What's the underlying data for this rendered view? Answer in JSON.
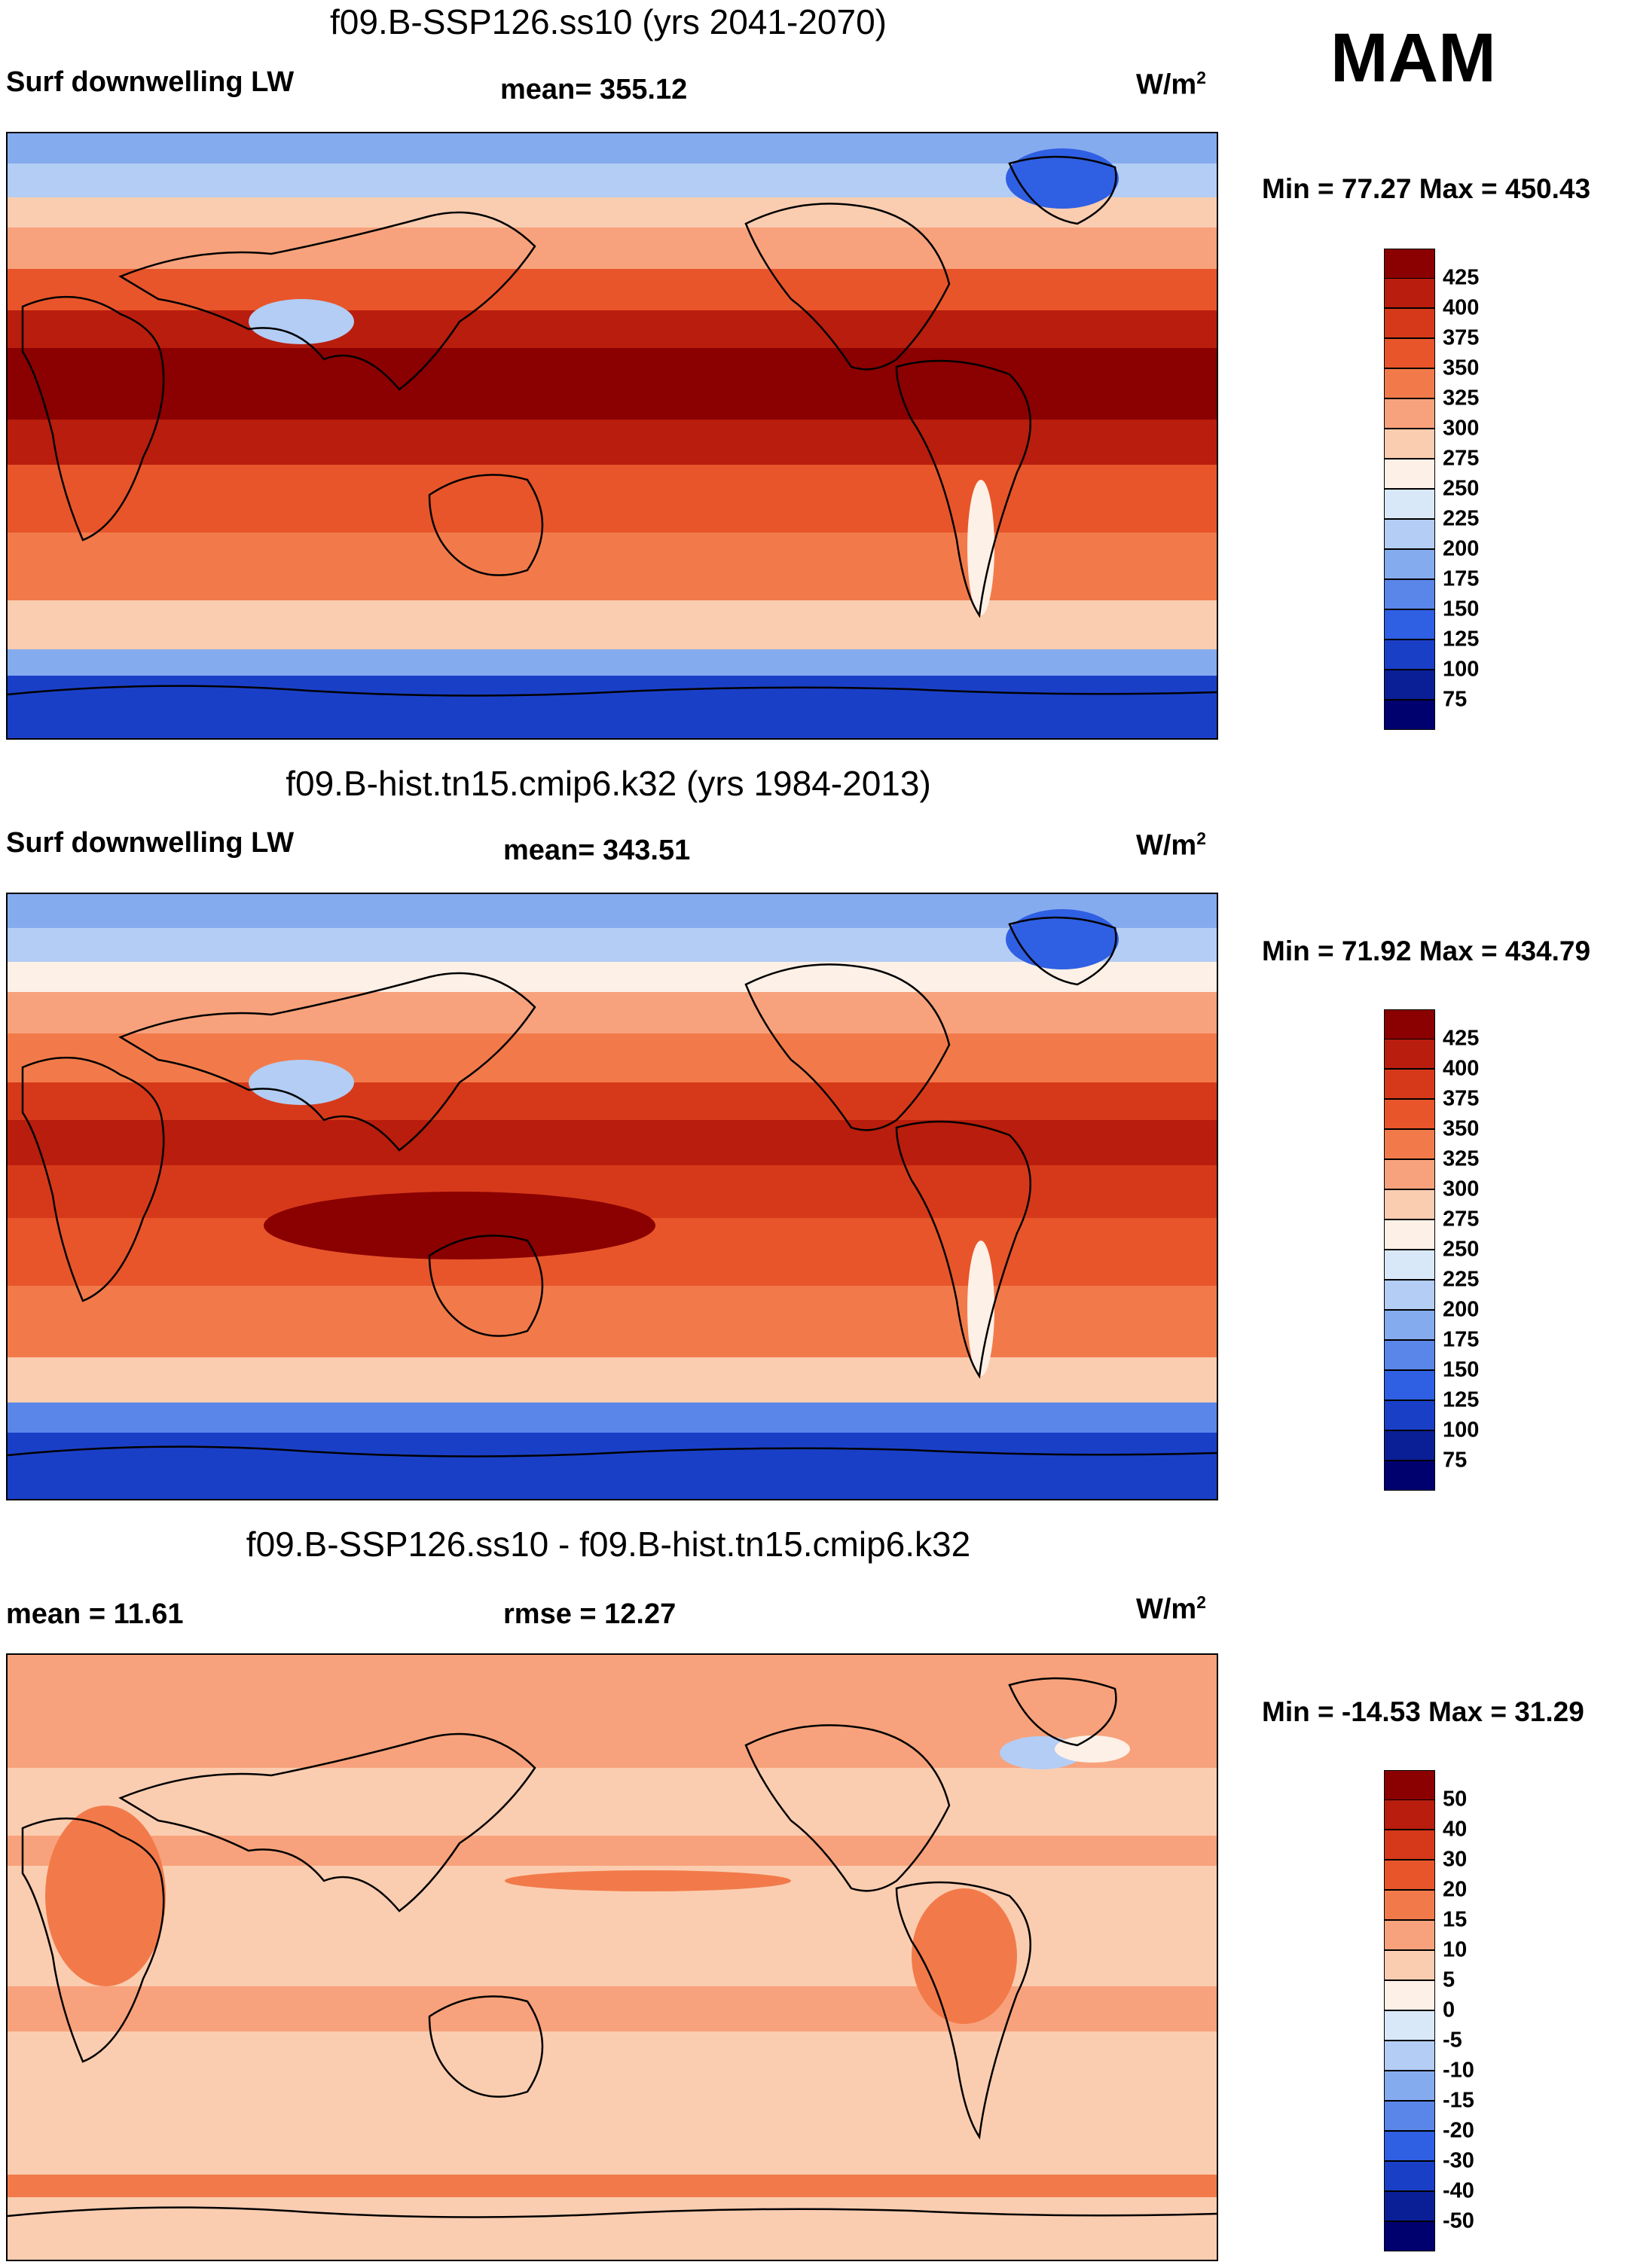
{
  "season": "MAM",
  "panels": [
    {
      "id": "ssp126",
      "title": "f09.B-SSP126.ss10 (yrs 2041-2070)",
      "left_label": "Surf downwelling LW",
      "center_label": "mean= 355.12",
      "units_base": "W/m",
      "units_exp": "2",
      "minmax": "Min =  77.27 Max = 450.43",
      "colorbar": {
        "labels": [
          "425",
          "400",
          "375",
          "350",
          "325",
          "300",
          "275",
          "250",
          "225",
          "200",
          "175",
          "150",
          "125",
          "100",
          "75"
        ],
        "colors": [
          "#8b0000",
          "#b81d0d",
          "#d6391a",
          "#e8552a",
          "#f27a4a",
          "#f7a27c",
          "#fbcdb0",
          "#fdf0e6",
          "#d9e8f8",
          "#b3cdf4",
          "#85abef",
          "#5a86ea",
          "#2f5fe2",
          "#1a3fc7",
          "#0a1f96",
          "#00006e"
        ]
      }
    },
    {
      "id": "hist",
      "title": "f09.B-hist.tn15.cmip6.k32 (yrs 1984-2013)",
      "left_label": "Surf downwelling LW",
      "center_label": "mean= 343.51",
      "units_base": "W/m",
      "units_exp": "2",
      "minmax": "Min = 71.92 Max = 434.79",
      "colorbar": {
        "labels": [
          "425",
          "400",
          "375",
          "350",
          "325",
          "300",
          "275",
          "250",
          "225",
          "200",
          "175",
          "150",
          "125",
          "100",
          "75"
        ],
        "colors": [
          "#8b0000",
          "#b81d0d",
          "#d6391a",
          "#e8552a",
          "#f27a4a",
          "#f7a27c",
          "#fbcdb0",
          "#fdf0e6",
          "#d9e8f8",
          "#b3cdf4",
          "#85abef",
          "#5a86ea",
          "#2f5fe2",
          "#1a3fc7",
          "#0a1f96",
          "#00006e"
        ]
      }
    },
    {
      "id": "diff",
      "title": "f09.B-SSP126.ss10 - f09.B-hist.tn15.cmip6.k32",
      "left_label": "mean =  11.61",
      "center_label": "rmse =  12.27",
      "units_base": "W/m",
      "units_exp": "2",
      "minmax": "Min = -14.53 Max =  31.29",
      "colorbar": {
        "labels": [
          "50",
          "40",
          "30",
          "20",
          "15",
          "10",
          "5",
          "0",
          "-5",
          "-10",
          "-15",
          "-20",
          "-30",
          "-40",
          "-50"
        ],
        "colors": [
          "#8b0000",
          "#b81d0d",
          "#d6391a",
          "#e8552a",
          "#f27a4a",
          "#f7a27c",
          "#fbcdb0",
          "#fdf0e6",
          "#d9e8f8",
          "#b3cdf4",
          "#85abef",
          "#5a86ea",
          "#2f5fe2",
          "#1a3fc7",
          "#0a1f96",
          "#00006e"
        ]
      }
    }
  ]
}
